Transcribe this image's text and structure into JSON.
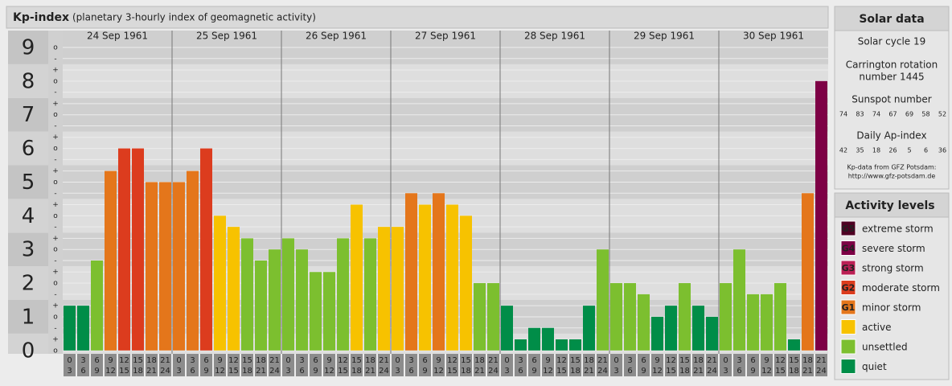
{
  "chart_data": {
    "type": "bar",
    "title": "Kp-index",
    "subtitle": "(planetary 3-hourly index of geomagnetic activity)",
    "ylim": [
      -0.1,
      9.5
    ],
    "yticks": [
      0,
      1,
      2,
      3,
      4,
      5,
      6,
      7,
      8,
      9
    ],
    "yminor": [
      {
        "value": 0,
        "label": "o"
      },
      {
        "value": 0.33,
        "label": "+"
      },
      {
        "value": 0.67,
        "label": "-"
      },
      {
        "value": 1,
        "label": "o"
      },
      {
        "value": 1.33,
        "label": "+"
      },
      {
        "value": 1.67,
        "label": "-"
      },
      {
        "value": 2,
        "label": "o"
      },
      {
        "value": 2.33,
        "label": "+"
      },
      {
        "value": 2.67,
        "label": "-"
      },
      {
        "value": 3,
        "label": "o"
      },
      {
        "value": 3.33,
        "label": "+"
      },
      {
        "value": 3.67,
        "label": "-"
      },
      {
        "value": 4,
        "label": "o"
      },
      {
        "value": 4.33,
        "label": "+"
      },
      {
        "value": 4.67,
        "label": "-"
      },
      {
        "value": 5,
        "label": "o"
      },
      {
        "value": 5.33,
        "label": "+"
      },
      {
        "value": 5.67,
        "label": "-"
      },
      {
        "value": 6,
        "label": "o"
      },
      {
        "value": 6.33,
        "label": "+"
      },
      {
        "value": 6.67,
        "label": "-"
      },
      {
        "value": 7,
        "label": "o"
      },
      {
        "value": 7.33,
        "label": "+"
      },
      {
        "value": 7.67,
        "label": "-"
      },
      {
        "value": 8,
        "label": "o"
      },
      {
        "value": 8.33,
        "label": "+"
      },
      {
        "value": 8.67,
        "label": "-"
      },
      {
        "value": 9,
        "label": "o"
      }
    ],
    "grid": true,
    "hours": [
      [
        0,
        3
      ],
      [
        3,
        6
      ],
      [
        6,
        9
      ],
      [
        9,
        12
      ],
      [
        12,
        15
      ],
      [
        15,
        18
      ],
      [
        18,
        21
      ],
      [
        21,
        24
      ]
    ],
    "days": [
      {
        "date": "24 Sep 1961",
        "values": [
          1.33,
          1.33,
          2.67,
          5.33,
          6,
          6,
          5,
          5
        ],
        "colors": [
          "#008d48",
          "#008d48",
          "#7cbf2f",
          "#e4761b",
          "#dc3c1e",
          "#dc3c1e",
          "#e4761b",
          "#e4761b"
        ]
      },
      {
        "date": "25 Sep 1961",
        "values": [
          5,
          5.33,
          6,
          4,
          3.67,
          3.33,
          2.67,
          3
        ],
        "colors": [
          "#e4761b",
          "#e4761b",
          "#dc3c1e",
          "#f7c200",
          "#f7c200",
          "#7cbf2f",
          "#7cbf2f",
          "#7cbf2f"
        ]
      },
      {
        "date": "26 Sep 1961",
        "values": [
          3.33,
          3,
          2.33,
          2.33,
          3.33,
          4.33,
          3.33,
          3.67
        ],
        "colors": [
          "#7cbf2f",
          "#7cbf2f",
          "#7cbf2f",
          "#7cbf2f",
          "#7cbf2f",
          "#f7c200",
          "#7cbf2f",
          "#f7c200"
        ]
      },
      {
        "date": "27 Sep 1961",
        "values": [
          3.67,
          4.67,
          4.33,
          4.67,
          4.33,
          4,
          2,
          2
        ],
        "colors": [
          "#f7c200",
          "#e4761b",
          "#f7c200",
          "#e4761b",
          "#f7c200",
          "#f7c200",
          "#7cbf2f",
          "#7cbf2f"
        ]
      },
      {
        "date": "28 Sep 1961",
        "values": [
          1.33,
          0.33,
          0.67,
          0.67,
          0.33,
          0.33,
          1.33,
          3
        ],
        "colors": [
          "#008d48",
          "#008d48",
          "#008d48",
          "#008d48",
          "#008d48",
          "#008d48",
          "#008d48",
          "#7cbf2f"
        ]
      },
      {
        "date": "29 Sep 1961",
        "values": [
          2,
          2,
          1.67,
          1,
          1.33,
          2,
          1.33,
          1
        ],
        "colors": [
          "#7cbf2f",
          "#7cbf2f",
          "#7cbf2f",
          "#008d48",
          "#008d48",
          "#7cbf2f",
          "#008d48",
          "#008d48"
        ]
      },
      {
        "date": "30 Sep 1961",
        "values": [
          2,
          3,
          1.67,
          1.67,
          2,
          0.33,
          4.67,
          8
        ],
        "colors": [
          "#7cbf2f",
          "#7cbf2f",
          "#7cbf2f",
          "#7cbf2f",
          "#7cbf2f",
          "#008d48",
          "#e4761b",
          "#7d0045"
        ]
      }
    ]
  },
  "solar_data": {
    "title": "Solar data",
    "cycle": "Solar cycle 19",
    "carrington": [
      "Carrington rotation",
      "number 1445"
    ],
    "sunspot_title": "Sunspot number",
    "sunspot": [
      74,
      83,
      74,
      67,
      69,
      58,
      52
    ],
    "ap_title": "Daily Ap-index",
    "ap": [
      42,
      35,
      18,
      26,
      5,
      6,
      36
    ],
    "source": "Kp-data from GFZ Potsdam:",
    "url": "http://www.gfz-potsdam.de"
  },
  "activity_levels": {
    "title": "Activity levels",
    "items": [
      {
        "tag": "G5",
        "name": "extreme storm",
        "color": "#4f0023"
      },
      {
        "tag": "G4",
        "name": "severe storm",
        "color": "#7d0045"
      },
      {
        "tag": "G3",
        "name": "strong storm",
        "color": "#bb2055"
      },
      {
        "tag": "G2",
        "name": "moderate storm",
        "color": "#dc3c1e"
      },
      {
        "tag": "G1",
        "name": "minor storm",
        "color": "#e4761b"
      },
      {
        "name": "active",
        "color": "#f7c200"
      },
      {
        "name": "unsettled",
        "color": "#7cbf2f"
      },
      {
        "name": "quiet",
        "color": "#008d48"
      }
    ]
  }
}
